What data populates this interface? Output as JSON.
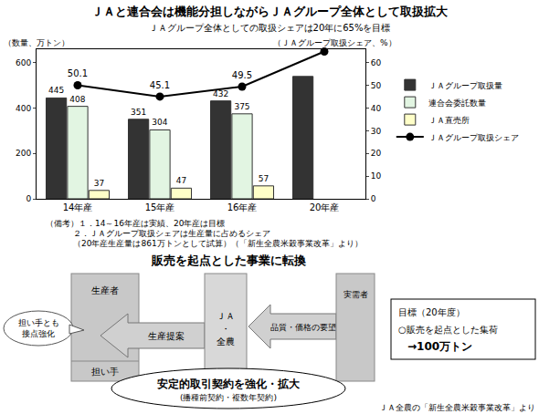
{
  "chart_data": {
    "type": "bar",
    "title": "ＪＡと連合会は機能分担しながらＪＡグループ全体として取扱拡大",
    "subtitle": "ＪＡグループ全体としての取扱シェアは20年に65%を目標",
    "y_label": "（数量、万トン）",
    "y2_label": "（ＪＡグループ取扱シェア、%）",
    "categories": [
      "14年産",
      "15年産",
      "16年産",
      "20年産"
    ],
    "series": [
      {
        "name": "ＪＡグループ取扱量",
        "type": "bar",
        "color": "#333333",
        "values": [
          445,
          351,
          432,
          540
        ],
        "value_labels": [
          "445",
          "351",
          "432",
          null
        ]
      },
      {
        "name": "連合会委託数量",
        "type": "bar",
        "color": "#e2f5e2",
        "values": [
          408,
          304,
          375,
          null
        ],
        "value_labels": [
          "408",
          "304",
          "375",
          null
        ]
      },
      {
        "name": "ＪＡ直売所",
        "type": "bar",
        "color": "#ffffc8",
        "values": [
          37,
          47,
          57,
          null
        ],
        "value_labels": [
          "37",
          "47",
          "57",
          null
        ]
      },
      {
        "name": "ＪＡグループ取扱シェア",
        "type": "line",
        "axis": "y2",
        "color": "#000000",
        "marker": "circle",
        "line_style": "solid",
        "values": [
          50.1,
          45.1,
          49.5,
          65
        ],
        "value_labels": [
          "50.1",
          "45.1",
          "49.5",
          null
        ]
      }
    ],
    "ylim": [
      0,
      660
    ],
    "yticks": [
      0,
      200,
      400,
      600
    ],
    "y2lim": [
      0,
      66
    ],
    "y2ticks": [
      0,
      10,
      20,
      30,
      40,
      50,
      60
    ],
    "grid": false,
    "legend": "right",
    "data_labels": true
  },
  "notes": [
    "（備考）１．14～16年産は実績、20年産は目標",
    "２．ＪＡグループ取扱シェアは生産量に占めるシェア",
    "（20年産生産量は861万トンとして試算）（「新生全農米穀事業改革」より）"
  ],
  "diagram": {
    "title": "販売を起点とした事業に転換",
    "producer": {
      "top": "生産者",
      "bottom": "担い手"
    },
    "bubble": [
      "担い手とも",
      "接点強化"
    ],
    "left_arrow": "生産提案",
    "center": [
      "ＪＡ",
      "・",
      "全農"
    ],
    "right_arrow": "品質・価格の要望",
    "buyer": "実需者",
    "contract": [
      "安定的取引契約を強化・拡大",
      "(播種前契約・複数年契約)"
    ],
    "goal": [
      "目標（20年度）",
      "○販売を起点とした集荷",
      "→100万トン"
    ],
    "source": "ＪＡ全農の「新生全農米穀事業改革」より"
  }
}
